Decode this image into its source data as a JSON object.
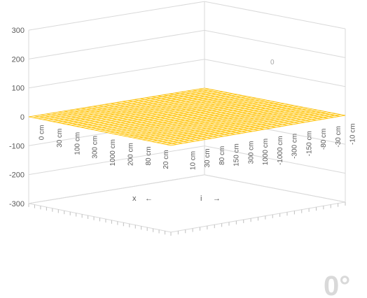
{
  "chart_data": {
    "type": "surface",
    "y_ticks": [
      "300",
      "200",
      "100",
      "0",
      "-100",
      "-200",
      "-300"
    ],
    "ylim": [
      -300,
      300
    ],
    "x_axis": {
      "label": "x",
      "arrow": "←",
      "tick_labels": [
        "0 cm",
        "30 cm",
        "100 cm",
        "300 cm",
        "1000 cm",
        "200 cm",
        "80 cm",
        "20 cm"
      ]
    },
    "i_axis": {
      "label": "i",
      "arrow": "→",
      "tick_labels": [
        "10 cm",
        "30 cm",
        "80 cm",
        "150 cm",
        "300 cm",
        "1000 cm",
        "-1000 cm",
        "-300 cm",
        "-150 cm",
        "-80 cm",
        "-30 cm",
        "-10 cm"
      ]
    },
    "surface_value": 0,
    "surface_color": "#ffc000",
    "grid": true,
    "zero_label": "0",
    "rotation_label": "0°"
  }
}
